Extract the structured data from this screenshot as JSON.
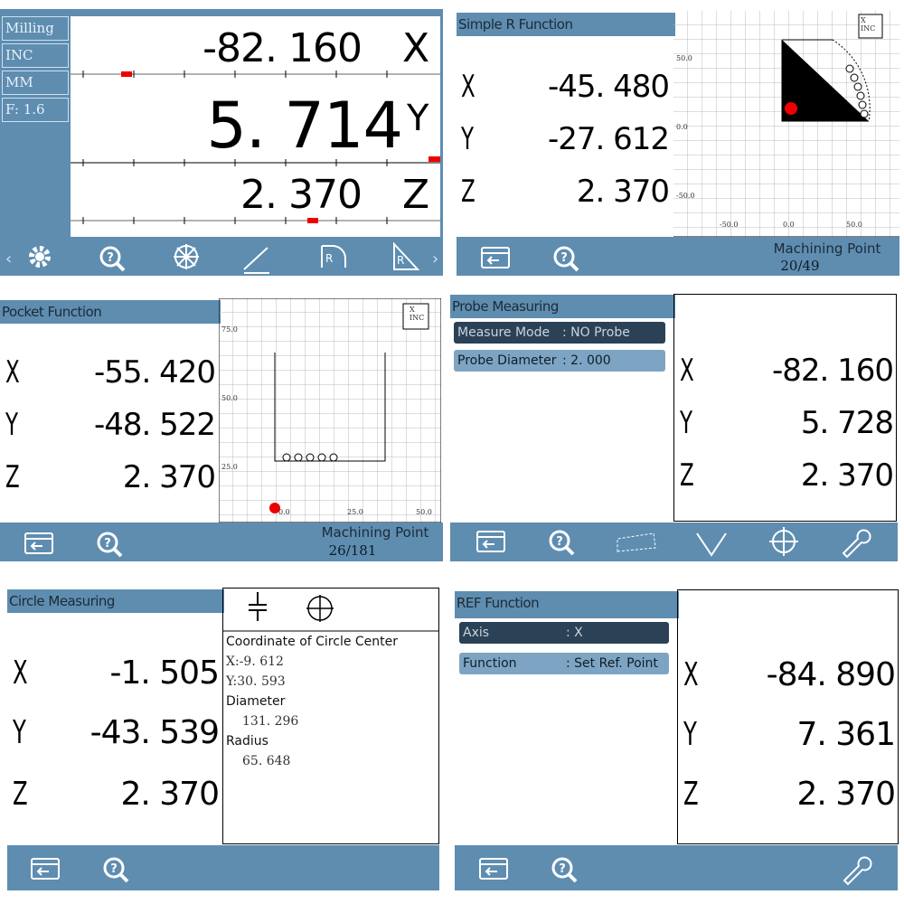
{
  "screens": [
    {
      "mode_labels": [
        "Milling",
        "INC",
        "MM",
        "F: 1.6"
      ],
      "readouts": [
        {
          "axis": "X",
          "value": "-82. 160"
        },
        {
          "axis": "Y",
          "value": "5. 714"
        },
        {
          "axis": "Z",
          "value": "2. 370"
        }
      ]
    },
    {
      "title": "Simple R Function",
      "readouts": [
        {
          "axis": "X",
          "value": "-45. 480"
        },
        {
          "axis": "Y",
          "value": "-27. 612"
        },
        {
          "axis": "Z",
          "value": "2. 370"
        }
      ],
      "graph": {
        "mode": "X\nINC",
        "y_labels": [
          "50.0",
          "0.0",
          "-50.0"
        ],
        "x_labels": [
          "-50.0",
          "0.0",
          "50.0"
        ]
      },
      "status_label": "Machining Point",
      "status_value": "20/49"
    },
    {
      "title": "Pocket Function",
      "readouts": [
        {
          "axis": "X",
          "value": "-55. 420"
        },
        {
          "axis": "Y",
          "value": "-48. 522"
        },
        {
          "axis": "Z",
          "value": "2. 370"
        }
      ],
      "graph": {
        "mode": "X\nINC",
        "y_labels": [
          "75.0",
          "50.0",
          "25.0"
        ],
        "x_labels": [
          "0.0",
          "25.0",
          "50.0"
        ]
      },
      "status_label": "Machining Point",
      "status_value": "26/181"
    },
    {
      "title": "Probe Measuring",
      "fields": [
        {
          "label": "Measure Mode",
          "value": ": NO Probe"
        },
        {
          "label": "Probe Diameter",
          "value": ": 2. 000"
        }
      ],
      "readouts": [
        {
          "axis": "X",
          "value": "-82. 160"
        },
        {
          "axis": "Y",
          "value": "5. 728"
        },
        {
          "axis": "Z",
          "value": "2. 370"
        }
      ]
    },
    {
      "title": "Circle Measuring",
      "readouts": [
        {
          "axis": "X",
          "value": "-1. 505"
        },
        {
          "axis": "Y",
          "value": "-43. 539"
        },
        {
          "axis": "Z",
          "value": "2. 370"
        }
      ],
      "info": [
        "Coordinate of Circle Center",
        "X:-9. 612",
        "Y:30. 593",
        "Diameter",
        "131. 296",
        "Radius",
        "65. 648"
      ]
    },
    {
      "title": "REF Function",
      "fields": [
        {
          "label": "Axis",
          "value": ": X"
        },
        {
          "label": "Function",
          "value": ": Set Ref. Point"
        }
      ],
      "readouts": [
        {
          "axis": "X",
          "value": "-84. 890"
        },
        {
          "axis": "Y",
          "value": "7. 361"
        },
        {
          "axis": "Z",
          "value": "2. 370"
        }
      ]
    }
  ]
}
